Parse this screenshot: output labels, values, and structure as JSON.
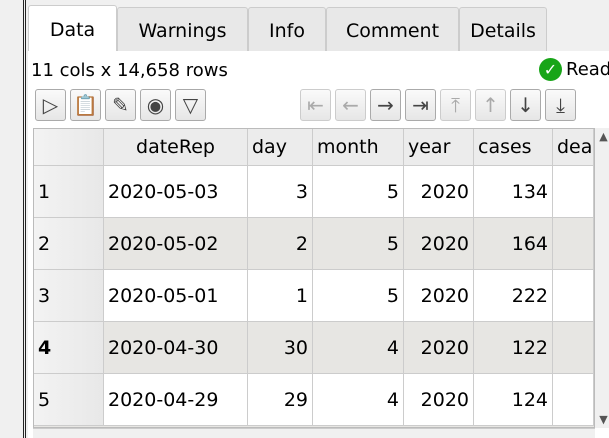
{
  "tabs": [
    "Data",
    "Warnings",
    "Info",
    "Comment",
    "Details"
  ],
  "status": {
    "dims": "11 cols x 14,658 rows",
    "ready": "Read"
  },
  "toolbar": [
    {
      "name": "run-icon",
      "glyph": "▷"
    },
    {
      "name": "clipboard-export-icon",
      "glyph": "📋"
    },
    {
      "name": "edit-icon",
      "glyph": "✎"
    },
    {
      "name": "view-icon",
      "glyph": "◉"
    },
    {
      "name": "filter-icon",
      "glyph": "▽"
    },
    {
      "name": "first-column-icon",
      "glyph": "⇤"
    },
    {
      "name": "previous-column-icon",
      "glyph": "←"
    },
    {
      "name": "next-column-icon",
      "glyph": "→"
    },
    {
      "name": "last-column-icon",
      "glyph": "⇥"
    },
    {
      "name": "first-row-icon",
      "glyph": "⤒"
    },
    {
      "name": "previous-row-icon",
      "glyph": "↑"
    },
    {
      "name": "next-row-icon",
      "glyph": "↓"
    },
    {
      "name": "last-row-icon",
      "glyph": "⤓"
    }
  ],
  "columns": [
    "",
    "dateRep",
    "day",
    "month",
    "year",
    "cases",
    "dea"
  ],
  "rows": [
    [
      "1",
      "2020-05-03",
      "3",
      "5",
      "2020",
      "134",
      ""
    ],
    [
      "2",
      "2020-05-02",
      "2",
      "5",
      "2020",
      "164",
      ""
    ],
    [
      "3",
      "2020-05-01",
      "1",
      "5",
      "2020",
      "222",
      ""
    ],
    [
      "4",
      "2020-04-30",
      "30",
      "4",
      "2020",
      "122",
      ""
    ],
    [
      "5",
      "2020-04-29",
      "29",
      "4",
      "2020",
      "124",
      ""
    ]
  ],
  "colors": {
    "ready": "#18a518",
    "alt_row": "#e7e6e3"
  }
}
